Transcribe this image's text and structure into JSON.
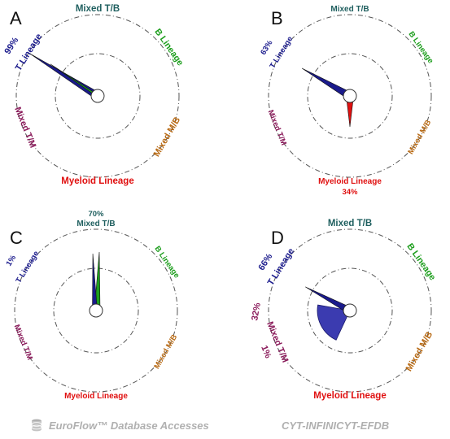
{
  "panels": [
    {
      "letter": "A",
      "lineages": {
        "top": "Mixed T/B",
        "b": "B Lineage",
        "mixed_mb": "Mixed M/B",
        "myeloid": "Myeloid Lineage",
        "mixed_tm": "Mixed T/M",
        "t": "T Lineage"
      },
      "percent_labels": {
        "t": "99%"
      },
      "wedges": [
        {
          "lineage": "T Lineage",
          "color": "#1a1a8c",
          "percent": 99
        },
        {
          "lineage": "B Lineage",
          "color": "#1e9e1e",
          "percent": 1
        }
      ]
    },
    {
      "letter": "B",
      "lineages": {
        "top": "Mixed T/B",
        "b": "B Lineage",
        "mixed_mb": "Mixed M/B",
        "myeloid": "Myeloid Lineage",
        "mixed_tm": "Mixed T/M",
        "t": "T Lineage"
      },
      "percent_labels": {
        "t": "63%",
        "myeloid": "34%"
      },
      "wedges": [
        {
          "lineage": "T Lineage",
          "color": "#1a1a8c",
          "percent": 63
        },
        {
          "lineage": "Myeloid Lineage",
          "color": "#e01010",
          "percent": 34
        }
      ]
    },
    {
      "letter": "C",
      "lineages": {
        "top": "Mixed T/B",
        "b": "B Lineage",
        "mixed_mb": "Mixed M/B",
        "myeloid": "Myeloid Lineage",
        "mixed_tm": "Mixed T/M",
        "t": "T Lineage"
      },
      "percent_labels": {
        "top": "70%",
        "t": "1%"
      },
      "wedges": [
        {
          "lineage": "Mixed T/B",
          "color": "#1a1a8c",
          "percent": 70
        },
        {
          "lineage": "B Lineage",
          "color": "#1e9e1e",
          "percent": 29
        },
        {
          "lineage": "T Lineage",
          "color": "#1a1a8c",
          "percent": 1
        }
      ]
    },
    {
      "letter": "D",
      "lineages": {
        "top": "Mixed T/B",
        "b": "B Lineage",
        "mixed_mb": "Mixed M/B",
        "myeloid": "Myeloid Lineage",
        "mixed_tm": "Mixed T/M",
        "t": "T Lineage"
      },
      "percent_labels": {
        "t": "66%",
        "mixed_tm_upper": "32%",
        "mixed_tm_lower": "1%"
      },
      "wedges": [
        {
          "lineage": "T Lineage",
          "color": "#1a1a8c",
          "percent": 66
        },
        {
          "lineage": "Mixed T/M",
          "color": "#3b3bb0",
          "percent": 32
        }
      ]
    }
  ],
  "footer": {
    "left_icon": "database-icon",
    "left_text": "EuroFlow™ Database Accesses",
    "right_text": "CYT-INFINICYT-EFDB"
  },
  "colors": {
    "mixed_tb": "#1f5f5f",
    "b": "#1e9e1e",
    "mixed_mb": "#b86a14",
    "myeloid": "#e01010",
    "mixed_tm": "#8a1a5a",
    "t": "#1a1a8c",
    "circle": "#555555"
  }
}
